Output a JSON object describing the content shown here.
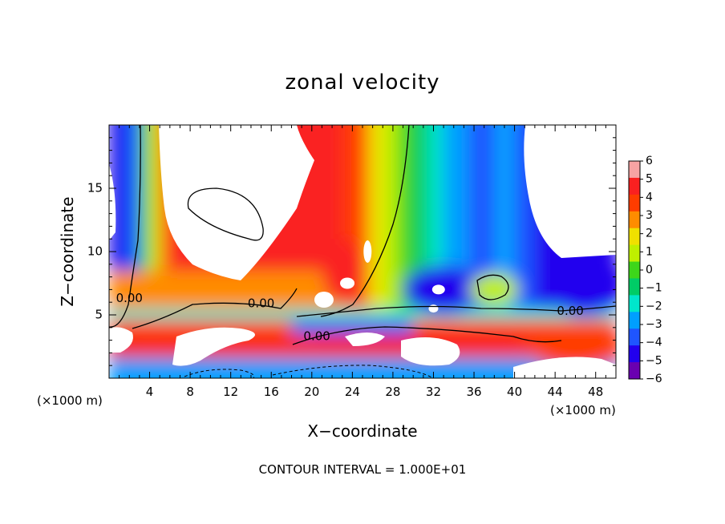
{
  "chart_data": {
    "type": "heatmap",
    "title": "zonal velocity",
    "xlabel": "X−coordinate",
    "ylabel": "Z−coordinate",
    "x_unit_left": "(×1000 m)",
    "x_unit_right": "(×1000 m)",
    "xlim": [
      0,
      50
    ],
    "ylim": [
      0,
      20
    ],
    "xticks": [
      4,
      8,
      12,
      16,
      20,
      24,
      28,
      32,
      36,
      40,
      44,
      48
    ],
    "yticks": [
      5,
      10,
      15
    ],
    "colorbar": {
      "range": [
        -6,
        6
      ],
      "labels": [
        "6",
        "5",
        "4",
        "3",
        "2",
        "1",
        "0",
        "−1",
        "−2",
        "−3",
        "−4",
        "−5",
        "−6"
      ],
      "colors": [
        "#f7a3a3",
        "#fa2020",
        "#ff3c00",
        "#ff8c00",
        "#f0e000",
        "#bff000",
        "#3dd61a",
        "#00cc66",
        "#00e6cc",
        "#009fff",
        "#1f55ff",
        "#2200ee",
        "#6a00b0"
      ]
    },
    "contour_labels": [
      {
        "text": "0.00",
        "x": 2,
        "y": 6.3
      },
      {
        "text": "0.00",
        "x": 15,
        "y": 5.9
      },
      {
        "text": "0.00",
        "x": 20.5,
        "y": 3.3
      },
      {
        "text": "0.00",
        "x": 45.5,
        "y": 5.3
      }
    ],
    "annotation": "CONTOUR INTERVAL = 1.000E+01",
    "grid": false,
    "legend": "colorbar-right"
  }
}
